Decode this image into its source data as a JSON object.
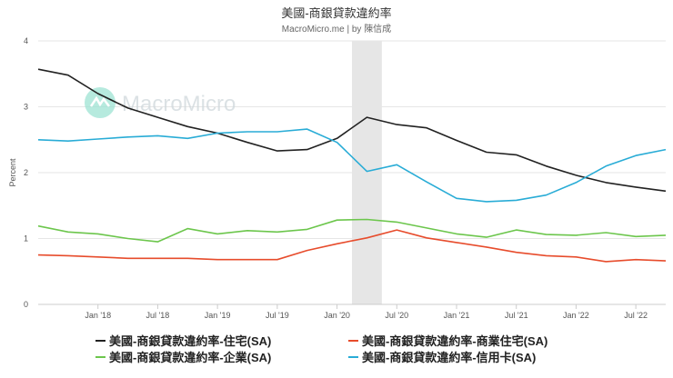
{
  "chart_data": {
    "type": "line",
    "title": "美國-商銀貸款違約率",
    "subtitle": "MacroMicro.me | by 陳信成",
    "watermark": "MacroMicro",
    "xlabel": "",
    "ylabel": "Percent",
    "ylim": [
      0,
      4
    ],
    "yticks": [
      "0",
      "1",
      "2",
      "3",
      "4"
    ],
    "xlim": [
      2017.5,
      2022.75
    ],
    "xticks": [
      {
        "label": "Jan '18",
        "x": 2018.0
      },
      {
        "label": "Jul '18",
        "x": 2018.5
      },
      {
        "label": "Jan '19",
        "x": 2019.0
      },
      {
        "label": "Jul '19",
        "x": 2019.5
      },
      {
        "label": "Jan '20",
        "x": 2020.0
      },
      {
        "label": "Jul '20",
        "x": 2020.5
      },
      {
        "label": "Jan '21",
        "x": 2021.0
      },
      {
        "label": "Jul '21",
        "x": 2021.5
      },
      {
        "label": "Jan '22",
        "x": 2022.0
      },
      {
        "label": "Jul '22",
        "x": 2022.5
      }
    ],
    "recession_band": [
      2020.125,
      2020.375
    ],
    "grid": true,
    "x": [
      2017.5,
      2017.75,
      2018.0,
      2018.25,
      2018.5,
      2018.75,
      2019.0,
      2019.25,
      2019.5,
      2019.75,
      2020.0,
      2020.25,
      2020.5,
      2020.75,
      2021.0,
      2021.25,
      2021.5,
      2021.75,
      2022.0,
      2022.25,
      2022.5,
      2022.75
    ],
    "series": [
      {
        "name": "美國-商銀貸款違約率-住宅(SA)",
        "color": "#222222",
        "values": [
          3.57,
          3.48,
          3.2,
          2.98,
          2.84,
          2.7,
          2.6,
          2.46,
          2.33,
          2.35,
          2.52,
          2.84,
          2.73,
          2.68,
          2.49,
          2.31,
          2.27,
          2.1,
          1.96,
          1.85,
          1.78,
          1.72
        ]
      },
      {
        "name": "美國-商銀貸款違約率-商業住宅(SA)",
        "color": "#e74c2c",
        "values": [
          0.75,
          0.74,
          0.72,
          0.7,
          0.7,
          0.7,
          0.68,
          0.68,
          0.68,
          0.82,
          0.92,
          1.01,
          1.13,
          1.01,
          0.94,
          0.87,
          0.79,
          0.74,
          0.72,
          0.65,
          0.68,
          0.66
        ]
      },
      {
        "name": "美國-商銀貸款違約率-企業(SA)",
        "color": "#6cc64c",
        "values": [
          1.19,
          1.1,
          1.07,
          1.0,
          0.95,
          1.15,
          1.07,
          1.12,
          1.1,
          1.14,
          1.28,
          1.29,
          1.25,
          1.16,
          1.07,
          1.02,
          1.13,
          1.06,
          1.05,
          1.09,
          1.03,
          1.05
        ]
      },
      {
        "name": "美國-商銀貸款違約率-信用卡(SA)",
        "color": "#29acd6",
        "values": [
          2.5,
          2.48,
          2.51,
          2.54,
          2.56,
          2.52,
          2.6,
          2.62,
          2.62,
          2.66,
          2.46,
          2.02,
          2.12,
          1.86,
          1.61,
          1.56,
          1.58,
          1.66,
          1.85,
          2.1,
          2.26,
          2.35
        ]
      }
    ],
    "legend": "bottom"
  }
}
